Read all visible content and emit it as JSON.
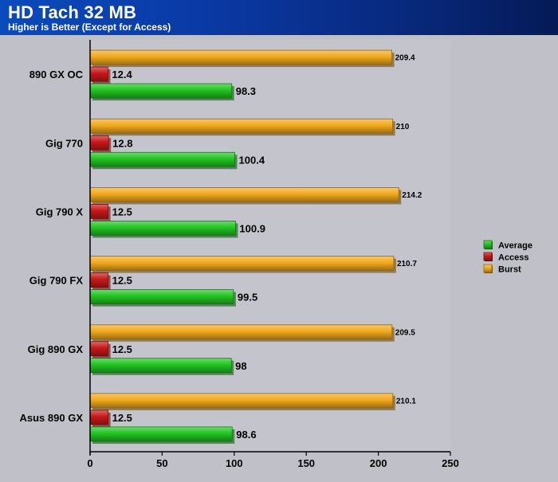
{
  "header": {
    "title": "HD Tach 32 MB",
    "subtitle": "Higher is Better (Except for Access)"
  },
  "colors": {
    "background": "#c0c0c8",
    "plot_background": "#c4c4cc",
    "header_start": "#0a4bbd",
    "header_end": "#051a56",
    "average": "#22c422",
    "access": "#c81818",
    "burst": "#f2a91c"
  },
  "chart_data": {
    "type": "bar",
    "orientation": "horizontal",
    "title": "HD Tach 32 MB",
    "subtitle": "Higher is Better (Except for Access)",
    "categories": [
      "890 GX OC",
      "Gig 770",
      "Gig 790 X",
      "Gig 790 FX",
      "Gig 890 GX",
      "Asus 890 GX"
    ],
    "series": [
      {
        "name": "Average",
        "color": "#22c422",
        "values": [
          98.3,
          100.4,
          100.9,
          99.5,
          98,
          98.6
        ]
      },
      {
        "name": "Access",
        "color": "#c81818",
        "values": [
          12.4,
          12.8,
          12.5,
          12.5,
          12.5,
          12.5
        ]
      },
      {
        "name": "Burst",
        "color": "#f2a91c",
        "values": [
          209.4,
          210,
          214.2,
          210.7,
          209.5,
          210.1
        ]
      }
    ],
    "xlim": [
      0,
      250
    ],
    "xticks": [
      0,
      50,
      100,
      150,
      200,
      250
    ],
    "xlabel": "",
    "ylabel": "",
    "grid": false,
    "legend_position": "right"
  }
}
